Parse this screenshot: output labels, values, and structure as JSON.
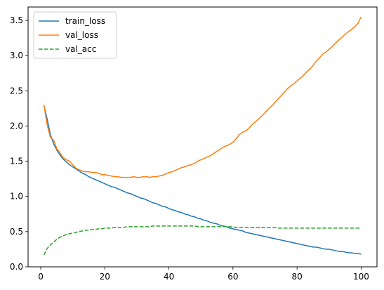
{
  "chart_data": {
    "type": "line",
    "title": "",
    "xlabel": "",
    "ylabel": "",
    "xlim": [
      -3.95,
      104.95
    ],
    "ylim": [
      -0.0,
      3.69
    ],
    "xticks": [
      0,
      20,
      40,
      60,
      80,
      100
    ],
    "yticks": [
      0.0,
      0.5,
      1.0,
      1.5,
      2.0,
      2.5,
      3.0,
      3.5
    ],
    "xtick_labels": [
      "0",
      "20",
      "40",
      "60",
      "80",
      "100"
    ],
    "ytick_labels": [
      "0.0",
      "0.5",
      "1.0",
      "1.5",
      "2.0",
      "2.5",
      "3.0",
      "3.5"
    ],
    "grid": false,
    "legend_position": "top-left",
    "x": [
      1,
      2,
      3,
      4,
      5,
      6,
      7,
      8,
      9,
      10,
      11,
      12,
      13,
      14,
      15,
      16,
      17,
      18,
      19,
      20,
      21,
      22,
      23,
      24,
      25,
      26,
      27,
      28,
      29,
      30,
      31,
      32,
      33,
      34,
      35,
      36,
      37,
      38,
      39,
      40,
      41,
      42,
      43,
      44,
      45,
      46,
      47,
      48,
      49,
      50,
      51,
      52,
      53,
      54,
      55,
      56,
      57,
      58,
      59,
      60,
      61,
      62,
      63,
      64,
      65,
      66,
      67,
      68,
      69,
      70,
      71,
      72,
      73,
      74,
      75,
      76,
      77,
      78,
      79,
      80,
      81,
      82,
      83,
      84,
      85,
      86,
      87,
      88,
      89,
      90,
      91,
      92,
      93,
      94,
      95,
      96,
      97,
      98,
      99,
      100
    ],
    "series": [
      {
        "name": "train_loss",
        "color": "#1f77b4",
        "style": "solid",
        "values": [
          2.29,
          2.1,
          1.88,
          1.75,
          1.66,
          1.59,
          1.53,
          1.49,
          1.45,
          1.42,
          1.39,
          1.36,
          1.33,
          1.31,
          1.28,
          1.26,
          1.24,
          1.22,
          1.2,
          1.18,
          1.16,
          1.14,
          1.13,
          1.11,
          1.09,
          1.07,
          1.05,
          1.04,
          1.02,
          1.0,
          0.98,
          0.97,
          0.95,
          0.93,
          0.91,
          0.9,
          0.88,
          0.86,
          0.85,
          0.83,
          0.81,
          0.8,
          0.78,
          0.77,
          0.75,
          0.74,
          0.72,
          0.71,
          0.69,
          0.68,
          0.66,
          0.65,
          0.63,
          0.62,
          0.61,
          0.59,
          0.58,
          0.57,
          0.55,
          0.54,
          0.53,
          0.52,
          0.51,
          0.49,
          0.48,
          0.47,
          0.46,
          0.45,
          0.44,
          0.43,
          0.42,
          0.41,
          0.4,
          0.39,
          0.38,
          0.37,
          0.36,
          0.35,
          0.34,
          0.33,
          0.32,
          0.31,
          0.3,
          0.29,
          0.28,
          0.28,
          0.27,
          0.26,
          0.25,
          0.25,
          0.24,
          0.23,
          0.22,
          0.22,
          0.21,
          0.2,
          0.2,
          0.19,
          0.19,
          0.18
        ]
      },
      {
        "name": "val_loss",
        "color": "#ff7f0e",
        "style": "solid",
        "values": [
          2.3,
          2.02,
          1.84,
          1.8,
          1.68,
          1.62,
          1.55,
          1.52,
          1.5,
          1.45,
          1.4,
          1.38,
          1.36,
          1.35,
          1.35,
          1.34,
          1.34,
          1.33,
          1.31,
          1.31,
          1.3,
          1.29,
          1.28,
          1.28,
          1.27,
          1.27,
          1.27,
          1.27,
          1.28,
          1.27,
          1.27,
          1.28,
          1.28,
          1.27,
          1.28,
          1.28,
          1.29,
          1.3,
          1.32,
          1.34,
          1.35,
          1.37,
          1.39,
          1.41,
          1.42,
          1.44,
          1.45,
          1.47,
          1.5,
          1.52,
          1.54,
          1.56,
          1.58,
          1.61,
          1.64,
          1.67,
          1.7,
          1.72,
          1.74,
          1.77,
          1.82,
          1.88,
          1.91,
          1.93,
          1.97,
          2.02,
          2.06,
          2.1,
          2.14,
          2.19,
          2.24,
          2.28,
          2.33,
          2.38,
          2.43,
          2.48,
          2.53,
          2.57,
          2.6,
          2.64,
          2.68,
          2.72,
          2.77,
          2.81,
          2.86,
          2.92,
          2.97,
          3.02,
          3.05,
          3.09,
          3.13,
          3.18,
          3.22,
          3.26,
          3.3,
          3.34,
          3.37,
          3.41,
          3.46,
          3.55
        ]
      },
      {
        "name": "val_acc",
        "color": "#2ca02c",
        "style": "dashed",
        "values": [
          0.17,
          0.26,
          0.31,
          0.35,
          0.39,
          0.42,
          0.44,
          0.46,
          0.47,
          0.48,
          0.49,
          0.5,
          0.51,
          0.52,
          0.52,
          0.53,
          0.53,
          0.54,
          0.54,
          0.55,
          0.55,
          0.55,
          0.56,
          0.56,
          0.56,
          0.56,
          0.57,
          0.57,
          0.57,
          0.57,
          0.57,
          0.57,
          0.57,
          0.57,
          0.58,
          0.58,
          0.58,
          0.58,
          0.58,
          0.58,
          0.58,
          0.58,
          0.58,
          0.58,
          0.58,
          0.58,
          0.58,
          0.58,
          0.57,
          0.57,
          0.57,
          0.57,
          0.57,
          0.57,
          0.57,
          0.57,
          0.57,
          0.57,
          0.57,
          0.57,
          0.56,
          0.56,
          0.56,
          0.56,
          0.56,
          0.56,
          0.56,
          0.56,
          0.56,
          0.56,
          0.56,
          0.56,
          0.56,
          0.55,
          0.55,
          0.55,
          0.55,
          0.55,
          0.55,
          0.55,
          0.55,
          0.55,
          0.55,
          0.55,
          0.55,
          0.55,
          0.55,
          0.55,
          0.55,
          0.55,
          0.55,
          0.55,
          0.55,
          0.55,
          0.55,
          0.55,
          0.55,
          0.55,
          0.55,
          0.55
        ]
      }
    ]
  }
}
